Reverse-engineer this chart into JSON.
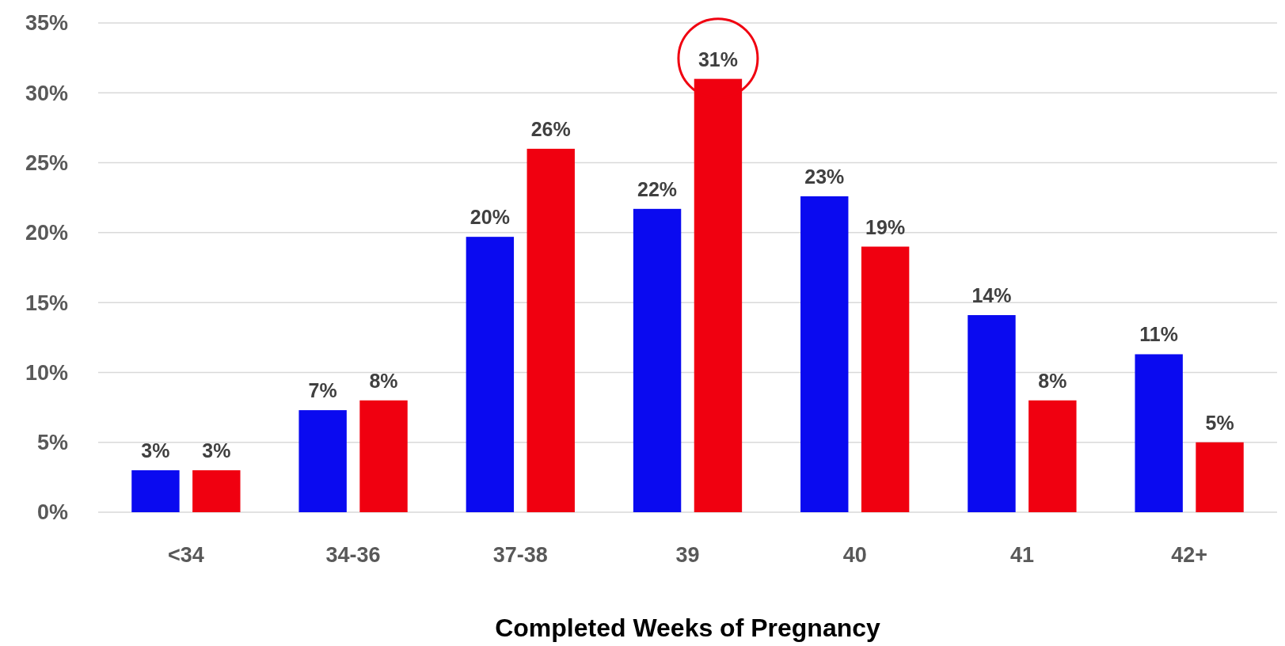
{
  "chart_data": {
    "type": "bar",
    "xlabel": "Completed Weeks of Pregnancy",
    "categories": [
      "<34",
      "34-36",
      "37-38",
      "39",
      "40",
      "41",
      "42+"
    ],
    "series": [
      {
        "color": "#0a0af0",
        "values": [
          3,
          7.3,
          19.7,
          21.7,
          22.6,
          14.1,
          11.3
        ],
        "value_labels": [
          "3%",
          "7%",
          "20%",
          "22%",
          "23%",
          "14%",
          "11%"
        ]
      },
      {
        "color": "#f00010",
        "values": [
          3,
          8,
          26,
          31,
          19,
          8,
          5
        ],
        "value_labels": [
          "3%",
          "8%",
          "26%",
          "31%",
          "19%",
          "8%",
          "5%"
        ]
      }
    ],
    "ylim": [
      0,
      35
    ],
    "yticks": [
      {
        "value": 0,
        "label": "0%"
      },
      {
        "value": 5,
        "label": "5%"
      },
      {
        "value": 10,
        "label": "10%"
      },
      {
        "value": 15,
        "label": "15%"
      },
      {
        "value": 20,
        "label": "20%"
      },
      {
        "value": 25,
        "label": "25%"
      },
      {
        "value": 30,
        "label": "30%"
      },
      {
        "value": 35,
        "label": "35%"
      }
    ],
    "grid": "y"
  }
}
